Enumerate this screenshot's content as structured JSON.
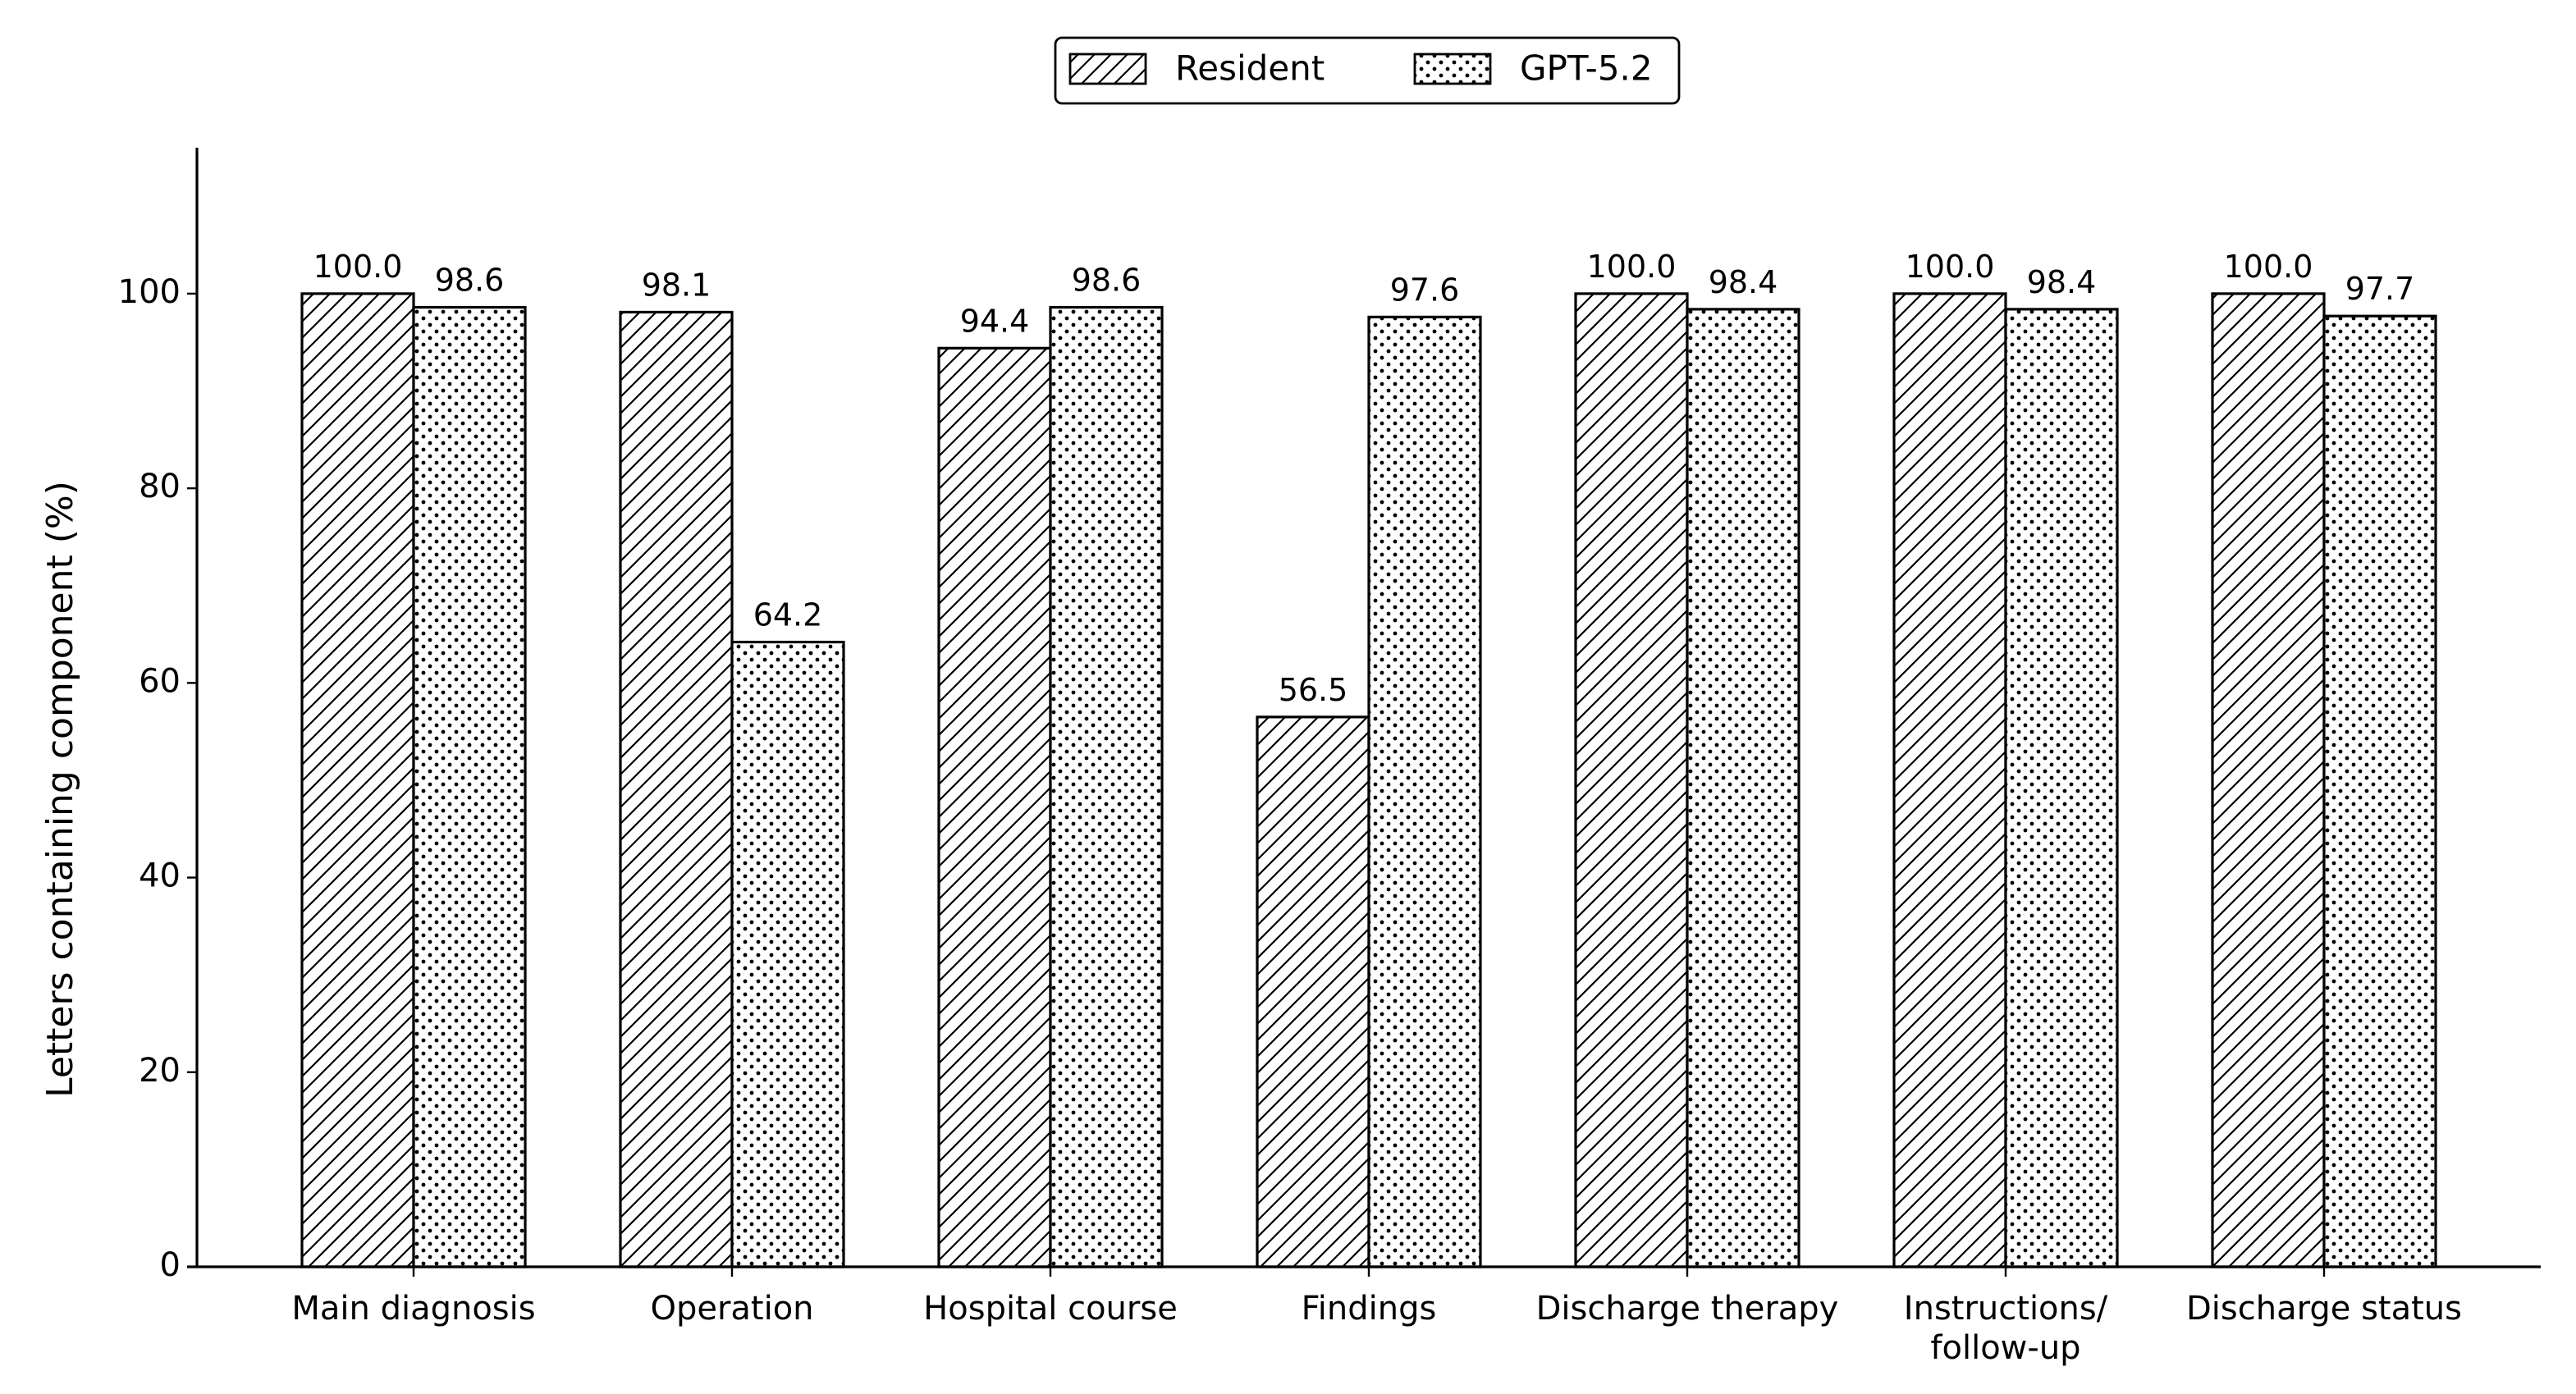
{
  "chart_data": {
    "type": "bar",
    "categories": [
      "Main diagnosis",
      "Operation",
      "Hospital course",
      "Findings",
      "Discharge therapy",
      "Instructions/\nfollow-up",
      "Discharge status"
    ],
    "series": [
      {
        "name": "Resident",
        "color": "#000000",
        "hatch": "///",
        "values": [
          100.0,
          98.1,
          94.4,
          56.5,
          100.0,
          100.0,
          100.0
        ],
        "value_labels": [
          "100.0",
          "98.1",
          "94.4",
          "56.5",
          "100.0",
          "100.0",
          "100.0"
        ]
      },
      {
        "name": "GPT-5.2",
        "color": "#000000",
        "hatch": "...",
        "values": [
          98.6,
          64.2,
          98.6,
          97.6,
          98.4,
          98.4,
          97.7
        ],
        "value_labels": [
          "98.6",
          "64.2",
          "98.6",
          "97.6",
          "98.4",
          "98.4",
          "97.7"
        ]
      }
    ],
    "y_label": "Letters containing component (%)",
    "ylim": [
      0,
      115
    ],
    "yticks": [
      0,
      20,
      40,
      60,
      80,
      100
    ],
    "legend": "upper center",
    "grid": false
  }
}
